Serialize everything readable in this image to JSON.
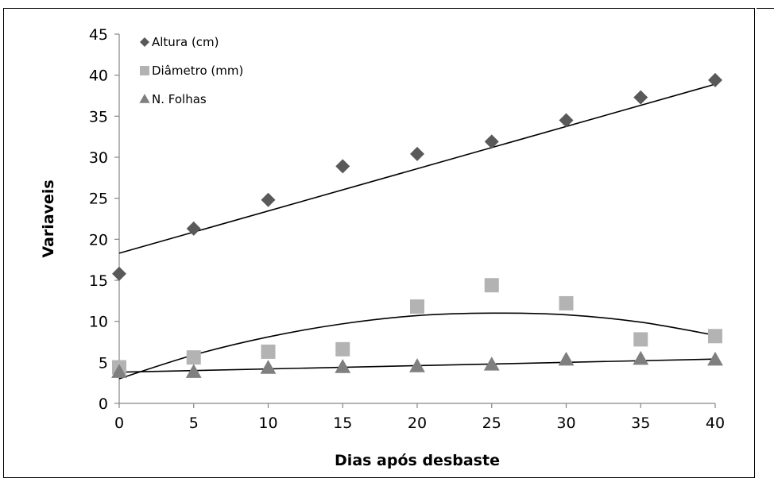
{
  "chart_data": {
    "type": "scatter",
    "x": [
      0,
      5,
      10,
      15,
      20,
      25,
      30,
      35,
      40
    ],
    "xlabel": "Dias após desbaste",
    "ylabel": "Variaveis",
    "xlim": [
      0,
      40
    ],
    "ylim": [
      0,
      45
    ],
    "xticks": [
      "0",
      "5",
      "10",
      "15",
      "20",
      "25",
      "30",
      "35",
      "40"
    ],
    "yticks": [
      "0",
      "5",
      "10",
      "15",
      "20",
      "25",
      "30",
      "35",
      "40",
      "45"
    ],
    "grid": false,
    "legend_position": "top-left",
    "series": [
      {
        "name": "Altura (cm)",
        "marker": "diamond",
        "color": "#595959",
        "values": [
          15.8,
          21.3,
          24.8,
          28.9,
          30.4,
          31.9,
          34.5,
          37.3,
          39.4
        ],
        "trend": {
          "type": "linear",
          "values": [
            18.3,
            20.9,
            23.4,
            26.0,
            28.6,
            31.2,
            33.7,
            36.3,
            38.9
          ]
        }
      },
      {
        "name": "Diâmetro (mm)",
        "marker": "square",
        "color": "#b3b3b3",
        "values": [
          4.4,
          5.6,
          6.3,
          6.6,
          11.8,
          14.4,
          12.2,
          7.8,
          8.2
        ],
        "trend": {
          "type": "polynomial",
          "values": [
            3.0,
            5.9,
            8.1,
            9.7,
            10.7,
            11.0,
            10.8,
            9.9,
            8.3
          ]
        }
      },
      {
        "name": "N. Folhas",
        "marker": "triangle",
        "color": "#7f7f7f",
        "values": [
          3.8,
          3.8,
          4.3,
          4.4,
          4.5,
          4.7,
          5.3,
          5.4,
          5.3
        ],
        "trend": {
          "type": "linear",
          "values": [
            3.8,
            4.0,
            4.2,
            4.4,
            4.6,
            4.8,
            5.0,
            5.2,
            5.4
          ]
        }
      }
    ]
  }
}
